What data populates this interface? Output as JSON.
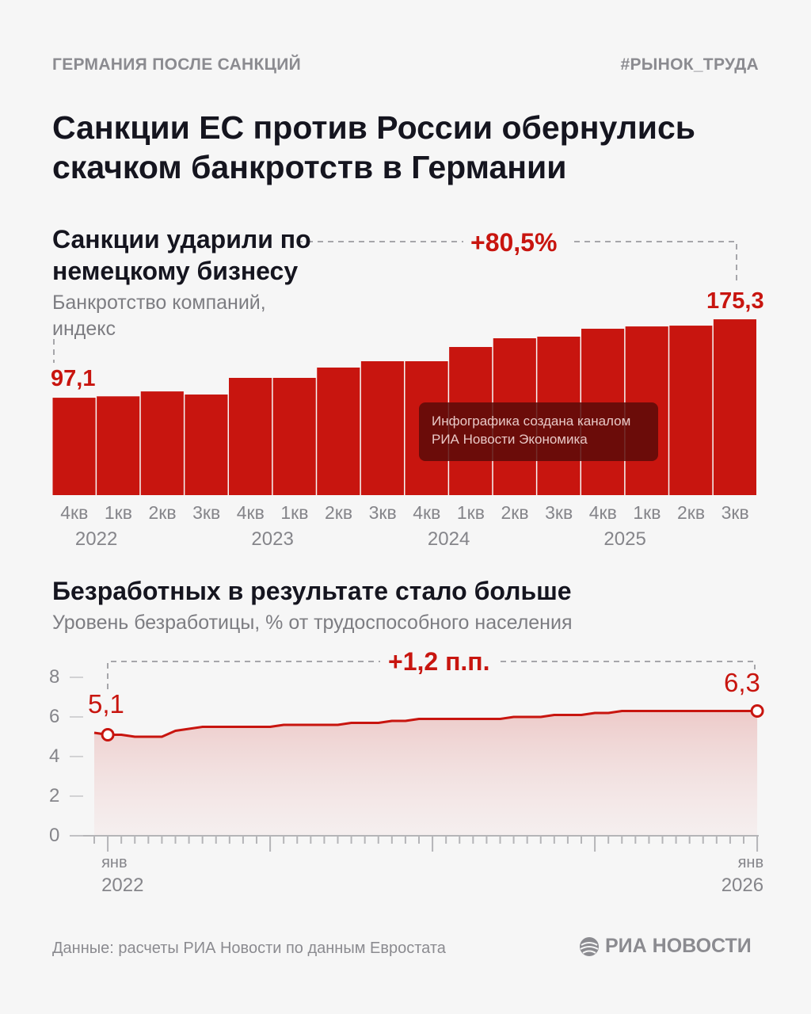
{
  "header": {
    "section": "ГЕРМАНИЯ ПОСЛЕ САНКЦИЙ",
    "hashtag": "#РЫНОК_ТРУДА",
    "title": "Санкции ЕС против России обернулись скачком банкротств в Германии"
  },
  "colors": {
    "accent": "#c8150f",
    "muted": "#8b8b90"
  },
  "chart_data": [
    {
      "type": "bar",
      "title": "Санкции ударили по немецкому бизнесу",
      "subtitle": "Банкротство компаний, индекс",
      "change_label": "+80,5%",
      "first_label": "97,1",
      "last_label": "175,3",
      "categories": [
        "4кв",
        "1кв",
        "2кв",
        "3кв",
        "4кв",
        "1кв",
        "2кв",
        "3кв",
        "4кв",
        "1кв",
        "2кв",
        "3кв",
        "4кв",
        "1кв",
        "2кв",
        "3кв"
      ],
      "years": [
        {
          "label": "2022",
          "index": 0.5
        },
        {
          "label": "2023",
          "index": 4.5
        },
        {
          "label": "2024",
          "index": 8.5
        },
        {
          "label": "2025",
          "index": 12.5
        }
      ],
      "values": [
        97.1,
        98.5,
        103.4,
        100.3,
        116.9,
        116.9,
        127.2,
        133.5,
        133.5,
        147.7,
        156.4,
        158.0,
        165.9,
        168.2,
        169.0,
        175.3
      ]
    },
    {
      "type": "area",
      "title": "Безработных в результате стало больше",
      "subtitle": "Уровень безработицы, % от трудоспособного населения",
      "change_label": "+1,2 п.п.",
      "first_label": "5,1",
      "last_label": "6,3",
      "ylim": [
        0,
        8
      ],
      "yticks": [
        "0",
        "2",
        "4",
        "6",
        "8"
      ],
      "x_start": "2021-12",
      "x_labels": [
        {
          "month": "янв",
          "year": "2022"
        },
        {
          "month": "янв",
          "year": "2026"
        }
      ],
      "values": [
        5.2,
        5.1,
        5.1,
        5.0,
        5.0,
        5.0,
        5.3,
        5.4,
        5.5,
        5.5,
        5.5,
        5.5,
        5.5,
        5.5,
        5.6,
        5.6,
        5.6,
        5.6,
        5.6,
        5.7,
        5.7,
        5.7,
        5.8,
        5.8,
        5.9,
        5.9,
        5.9,
        5.9,
        5.9,
        5.9,
        5.9,
        6.0,
        6.0,
        6.0,
        6.1,
        6.1,
        6.1,
        6.2,
        6.2,
        6.3,
        6.3,
        6.3,
        6.3,
        6.3,
        6.3,
        6.3,
        6.3,
        6.3,
        6.3,
        6.3
      ]
    }
  ],
  "watermark": {
    "line1": "Инфографика создана каналом",
    "line2": "РИА Новости Экономика"
  },
  "footer": {
    "source": "Данные: расчеты РИА Новости по данным Евростата",
    "logo": "РИА НОВОСТИ"
  }
}
